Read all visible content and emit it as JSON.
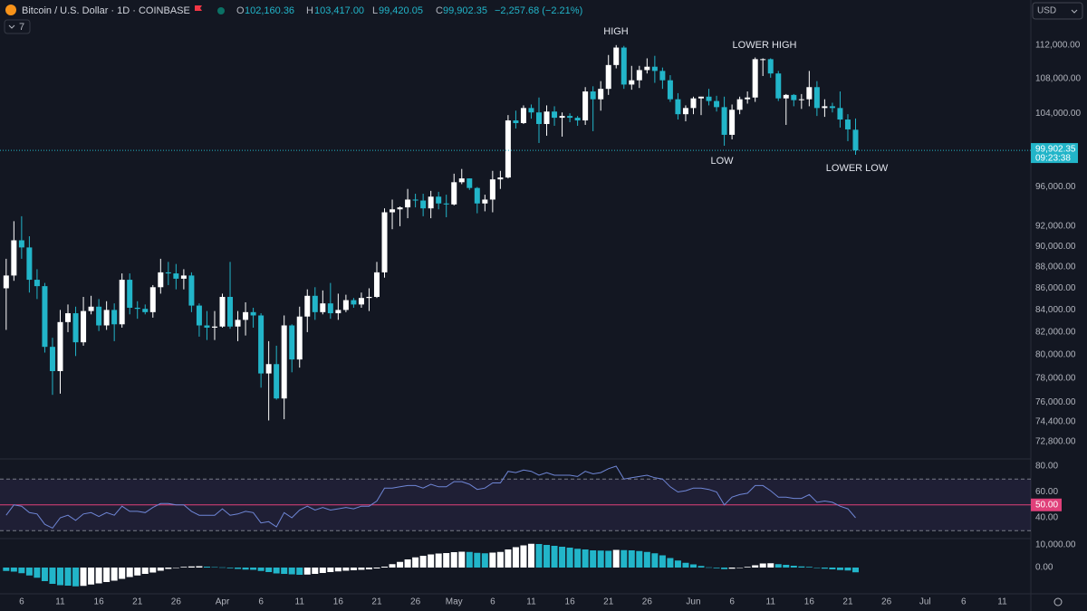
{
  "header": {
    "symbol": "Bitcoin / U.S. Dollar · 1D · COINBASE",
    "ohlc": [
      {
        "key": "O",
        "label": "102,160.36"
      },
      {
        "key": "H",
        "label": "103,417.00"
      },
      {
        "key": "L",
        "label": "99,420.05"
      },
      {
        "key": "C",
        "label": "99,902.35"
      }
    ],
    "change": "−2,257.68 (−2.21%)",
    "indicators": "7",
    "currency": "USD"
  },
  "chart_data": [
    {
      "type": "candlestick",
      "up_color": "#ffffff",
      "down_color": "#22b5c9",
      "log_scale": true,
      "open": [
        86000,
        87200,
        90600,
        89900,
        86800,
        86200,
        80700,
        78600,
        82900,
        83700,
        81100,
        83900,
        84300,
        82600,
        84000,
        82700,
        86800,
        84200,
        84100,
        83800,
        86100,
        87500,
        87400,
        86900,
        87200,
        84400,
        82600,
        82400,
        82500,
        85200,
        82500,
        83100,
        83800,
        83500,
        78400,
        79200,
        76300,
        82600,
        79600,
        83400,
        85300,
        83800,
        84600,
        83700,
        84000,
        84900,
        84500,
        85100,
        85200,
        87500,
        93400,
        93700,
        93900,
        94700,
        94600,
        93800,
        95000,
        94300,
        94200,
        96500,
        96900,
        95900,
        94300,
        94700,
        96800,
        97000,
        103200,
        102900,
        104600,
        104100,
        102800,
        104200,
        103500,
        103700,
        103500,
        103200,
        106500,
        105600,
        106800,
        109600,
        111700,
        107300,
        107800,
        109000,
        109400,
        108900,
        107800,
        105600,
        103900,
        104600,
        105700,
        105900,
        105400,
        104700,
        101600,
        104400,
        105600,
        105800,
        110300,
        110300,
        108600,
        105700,
        106100,
        105500,
        105600,
        107000,
        104600,
        104800,
        104600,
        103300,
        102160.36
      ],
      "high": [
        88800,
        92500,
        93000,
        91000,
        87800,
        86500,
        81500,
        84000,
        84500,
        84300,
        85200,
        85300,
        85000,
        84800,
        84600,
        87400,
        87400,
        84800,
        84500,
        86300,
        88800,
        88500,
        88300,
        87800,
        87500,
        84600,
        83900,
        83900,
        85500,
        88500,
        83900,
        84700,
        84200,
        83700,
        81200,
        80800,
        83500,
        82700,
        84300,
        85900,
        86100,
        85800,
        86500,
        85500,
        85400,
        85100,
        85600,
        86000,
        88500,
        93800,
        94700,
        94000,
        95800,
        95300,
        95300,
        95600,
        95500,
        95200,
        97400,
        97900,
        96900,
        96000,
        95200,
        97700,
        97700,
        103800,
        104300,
        104900,
        105000,
        105800,
        104900,
        104800,
        104100,
        104000,
        103700,
        107000,
        107100,
        107700,
        110800,
        112000,
        111900,
        109500,
        109500,
        110400,
        110700,
        109300,
        108400,
        106300,
        104900,
        105900,
        105900,
        106800,
        106000,
        105900,
        105000,
        105900,
        106500,
        110500,
        110400,
        110400,
        108900,
        106200,
        106200,
        106200,
        108900,
        107700,
        105600,
        105200,
        106500,
        103900,
        103417
      ],
      "low": [
        82200,
        86700,
        88800,
        85600,
        85000,
        80200,
        76600,
        76700,
        82000,
        79900,
        80800,
        83600,
        82100,
        82200,
        81200,
        82400,
        83600,
        83200,
        83600,
        83300,
        85500,
        86300,
        85900,
        85900,
        83800,
        81600,
        81300,
        81300,
        82400,
        82300,
        81200,
        81700,
        82400,
        77200,
        74500,
        76200,
        74600,
        78500,
        78900,
        82000,
        83100,
        83600,
        83200,
        83100,
        83800,
        84200,
        84200,
        83900,
        85100,
        87000,
        91700,
        92000,
        92800,
        93900,
        93000,
        92800,
        93700,
        92900,
        94100,
        96300,
        95700,
        93300,
        93500,
        93400,
        95800,
        96900,
        102300,
        102800,
        103400,
        100700,
        101500,
        102600,
        101400,
        103000,
        102600,
        102700,
        102000,
        104300,
        106100,
        109200,
        106800,
        106700,
        106900,
        108600,
        107500,
        106800,
        105300,
        103300,
        103100,
        103900,
        103800,
        104900,
        104200,
        100400,
        101100,
        103900,
        105100,
        105300,
        108300,
        108100,
        105400,
        102700,
        104800,
        104500,
        104800,
        103700,
        103600,
        104100,
        102400,
        100900,
        99420.05
      ],
      "close": [
        87200,
        90600,
        89900,
        86800,
        86200,
        80700,
        78600,
        82900,
        83700,
        81100,
        83900,
        84300,
        82600,
        84000,
        82700,
        86800,
        84200,
        84100,
        83800,
        86100,
        87500,
        87400,
        86900,
        87200,
        84400,
        82600,
        82400,
        82500,
        85200,
        82500,
        83100,
        83800,
        83500,
        78400,
        79200,
        76300,
        82600,
        79600,
        83400,
        85300,
        83800,
        84600,
        83700,
        84000,
        84900,
        84500,
        85100,
        85200,
        87500,
        93400,
        93700,
        93900,
        94700,
        94600,
        93800,
        95000,
        94300,
        94200,
        96500,
        96900,
        95900,
        94300,
        94700,
        96800,
        97000,
        103200,
        102900,
        104600,
        104100,
        102800,
        104200,
        103500,
        103700,
        103500,
        103200,
        106500,
        105600,
        106800,
        109600,
        111700,
        107300,
        107800,
        109000,
        109400,
        108900,
        107800,
        105600,
        103900,
        104600,
        105700,
        105900,
        105400,
        104700,
        101600,
        104400,
        105600,
        105800,
        110300,
        110300,
        108600,
        105700,
        106100,
        105500,
        105600,
        107000,
        104600,
        104800,
        104600,
        103300,
        102200,
        99902.35
      ],
      "ylim": [
        71450,
        116700
      ],
      "yticks": [
        {
          "value": 112000,
          "label": "112,000.00"
        },
        {
          "value": 108000,
          "label": "108,000.00"
        },
        {
          "value": 104000,
          "label": "104,000.00"
        },
        {
          "value": 96000,
          "label": "96,000.00"
        },
        {
          "value": 92000,
          "label": "92,000.00"
        },
        {
          "value": 90000,
          "label": "90,000.00"
        },
        {
          "value": 88000,
          "label": "88,000.00"
        },
        {
          "value": 86000,
          "label": "86,000.00"
        },
        {
          "value": 84000,
          "label": "84,000.00"
        },
        {
          "value": 82000,
          "label": "82,000.00"
        },
        {
          "value": 80000,
          "label": "80,000.00"
        },
        {
          "value": 78000,
          "label": "78,000.00"
        },
        {
          "value": 76000,
          "label": "76,000.00"
        },
        {
          "value": 74400,
          "label": "74,400.00"
        },
        {
          "value": 72800,
          "label": "72,800.00"
        }
      ],
      "xlim": [
        -0.8,
        132.7
      ],
      "xticks": [
        {
          "value": 2,
          "label": "6"
        },
        {
          "value": 7,
          "label": "11"
        },
        {
          "value": 12,
          "label": "16"
        },
        {
          "value": 17,
          "label": "21"
        },
        {
          "value": 22,
          "label": "26"
        },
        {
          "value": 28,
          "label": "Apr"
        },
        {
          "value": 33,
          "label": "6"
        },
        {
          "value": 38,
          "label": "11"
        },
        {
          "value": 43,
          "label": "16"
        },
        {
          "value": 48,
          "label": "21"
        },
        {
          "value": 53,
          "label": "26"
        },
        {
          "value": 58,
          "label": "May"
        },
        {
          "value": 63,
          "label": "6"
        },
        {
          "value": 68,
          "label": "11"
        },
        {
          "value": 73,
          "label": "16"
        },
        {
          "value": 78,
          "label": "21"
        },
        {
          "value": 83,
          "label": "26"
        },
        {
          "value": 89,
          "label": "Jun"
        },
        {
          "value": 94,
          "label": "6"
        },
        {
          "value": 99,
          "label": "11"
        },
        {
          "value": 104,
          "label": "16"
        },
        {
          "value": 109,
          "label": "21"
        },
        {
          "value": 114,
          "label": "26"
        },
        {
          "value": 119,
          "label": "Jul"
        },
        {
          "value": 124,
          "label": "6"
        },
        {
          "value": 129,
          "label": "11"
        }
      ],
      "price_line": {
        "value": 99902.35,
        "label": "99,902.35",
        "countdown": "09:23:38",
        "color": "#22b5c9"
      },
      "annotations": [
        {
          "text": "HIGH"
        },
        {
          "text": "LOWER HIGH"
        },
        {
          "text": "LOW"
        },
        {
          "text": "LOWER LOW"
        }
      ]
    },
    {
      "type": "line",
      "color": "#6f86d6",
      "values": [
        42,
        50,
        49,
        44,
        43,
        35,
        32,
        40,
        42,
        38,
        43,
        44,
        41,
        44,
        42,
        49,
        45,
        45,
        44,
        48,
        51,
        51,
        50,
        50,
        45,
        42,
        42,
        42,
        47,
        42,
        43,
        45,
        44,
        36,
        37,
        33,
        44,
        40,
        46,
        49,
        46,
        48,
        46,
        47,
        48,
        47,
        49,
        49,
        53,
        63,
        63,
        64,
        65,
        65,
        63,
        66,
        64,
        64,
        68,
        68,
        66,
        62,
        63,
        67,
        67,
        76,
        75,
        77,
        76,
        73,
        75,
        73,
        73,
        73,
        72,
        76,
        74,
        75,
        78,
        80,
        70,
        71,
        72,
        73,
        71,
        70,
        64,
        60,
        61,
        63,
        63,
        62,
        60,
        50,
        56,
        58,
        59,
        65,
        65,
        61,
        56,
        56,
        55,
        55,
        58,
        52,
        53,
        52,
        49,
        47,
        40
      ],
      "ylim": [
        23.9,
        85.6
      ],
      "yticks": [
        {
          "value": 80,
          "label": "80.00"
        },
        {
          "value": 60,
          "label": "60.00"
        },
        {
          "value": 40,
          "label": "40.00"
        }
      ],
      "levels": [
        {
          "value": 70
        },
        {
          "value": 50,
          "label": "50.00",
          "color": "#e0407a"
        },
        {
          "value": 30
        }
      ]
    },
    {
      "type": "bar",
      "rising_color": "#ffffff",
      "falling_color": "#22b5c9",
      "values": [
        -1500,
        -1800,
        -2500,
        -3500,
        -4500,
        -6000,
        -7200,
        -7800,
        -8000,
        -8300,
        -8100,
        -7500,
        -7000,
        -6400,
        -5800,
        -5000,
        -4200,
        -3500,
        -2800,
        -2200,
        -1400,
        -600,
        0,
        300,
        500,
        600,
        400,
        200,
        100,
        -300,
        -600,
        -900,
        -1000,
        -1500,
        -2000,
        -2600,
        -2800,
        -3000,
        -3200,
        -3100,
        -2800,
        -2400,
        -2000,
        -1700,
        -1400,
        -1200,
        -1000,
        -800,
        -400,
        400,
        1500,
        2500,
        3600,
        4500,
        5200,
        5800,
        6200,
        6400,
        6800,
        7000,
        6900,
        6500,
        6300,
        6600,
        6900,
        8000,
        9000,
        9800,
        10500,
        10400,
        10000,
        9600,
        9200,
        8800,
        8300,
        8000,
        7600,
        7500,
        7400,
        7800,
        7700,
        7600,
        7300,
        6900,
        6300,
        5400,
        4200,
        3100,
        2100,
        1400,
        700,
        100,
        -300,
        -700,
        -500,
        0,
        300,
        1000,
        1800,
        1900,
        1500,
        1200,
        800,
        500,
        300,
        -200,
        -500,
        -800,
        -1100,
        -1300,
        -2100
      ],
      "ylim": [
        -11200,
        12400
      ],
      "yticks": [
        {
          "value": 10000,
          "label": "10,000.00"
        },
        {
          "value": 0,
          "label": "0.00"
        }
      ]
    }
  ]
}
